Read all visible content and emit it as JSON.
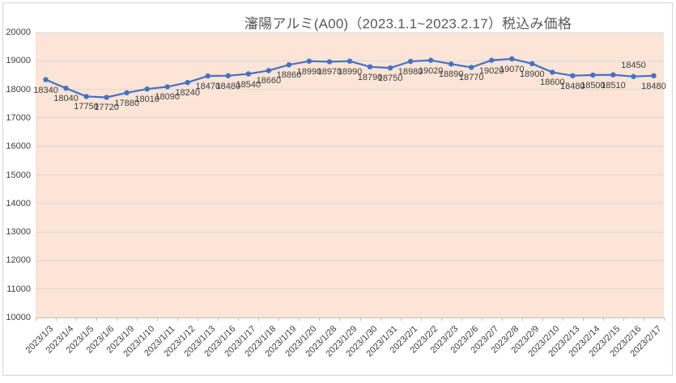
{
  "chart_data": {
    "type": "line",
    "title": "瀋陽アルミ(A00)（2023.1.1~2023.2.17）税込み価格",
    "categories": [
      "2023/1/3",
      "2023/1/4",
      "2023/1/5",
      "2023/1/6",
      "2023/1/9",
      "2023/1/10",
      "2023/1/11",
      "2023/1/12",
      "2023/1/13",
      "2023/1/16",
      "2023/1/17",
      "2023/1/18",
      "2023/1/19",
      "2023/1/20",
      "2023/1/28",
      "2023/1/29",
      "2023/1/30",
      "2023/1/31",
      "2023/2/1",
      "2023/2/2",
      "2023/2/3",
      "2023/2/6",
      "2023/2/7",
      "2023/2/8",
      "2023/2/9",
      "2023/2/10",
      "2023/2/13",
      "2023/2/14",
      "2023/2/15",
      "2023/2/16",
      "2023/2/17"
    ],
    "values": [
      18340,
      18040,
      17750,
      17720,
      17880,
      18010,
      18090,
      18240,
      18470,
      18480,
      18540,
      18660,
      18860,
      18990,
      18970,
      18990,
      18790,
      18750,
      18980,
      19020,
      18890,
      18770,
      19020,
      19070,
      18900,
      18600,
      18480,
      18500,
      18510,
      18450,
      18480
    ],
    "xlabel": "",
    "ylabel": "",
    "ylim": [
      10000,
      20000
    ],
    "ytick_interval": 1000,
    "grid": true,
    "legend_position": "none",
    "data_labels": true,
    "data_label_position": "below",
    "data_label_above_indices": [
      29
    ],
    "colors": {
      "line": "#4472c4",
      "marker": "#4472c4",
      "plot_background": "#fce4d6",
      "gridline": "#d9d9d9",
      "axis": "#bfbfbf",
      "title_text": "#595959",
      "label_text": "#3d3d3d"
    }
  }
}
